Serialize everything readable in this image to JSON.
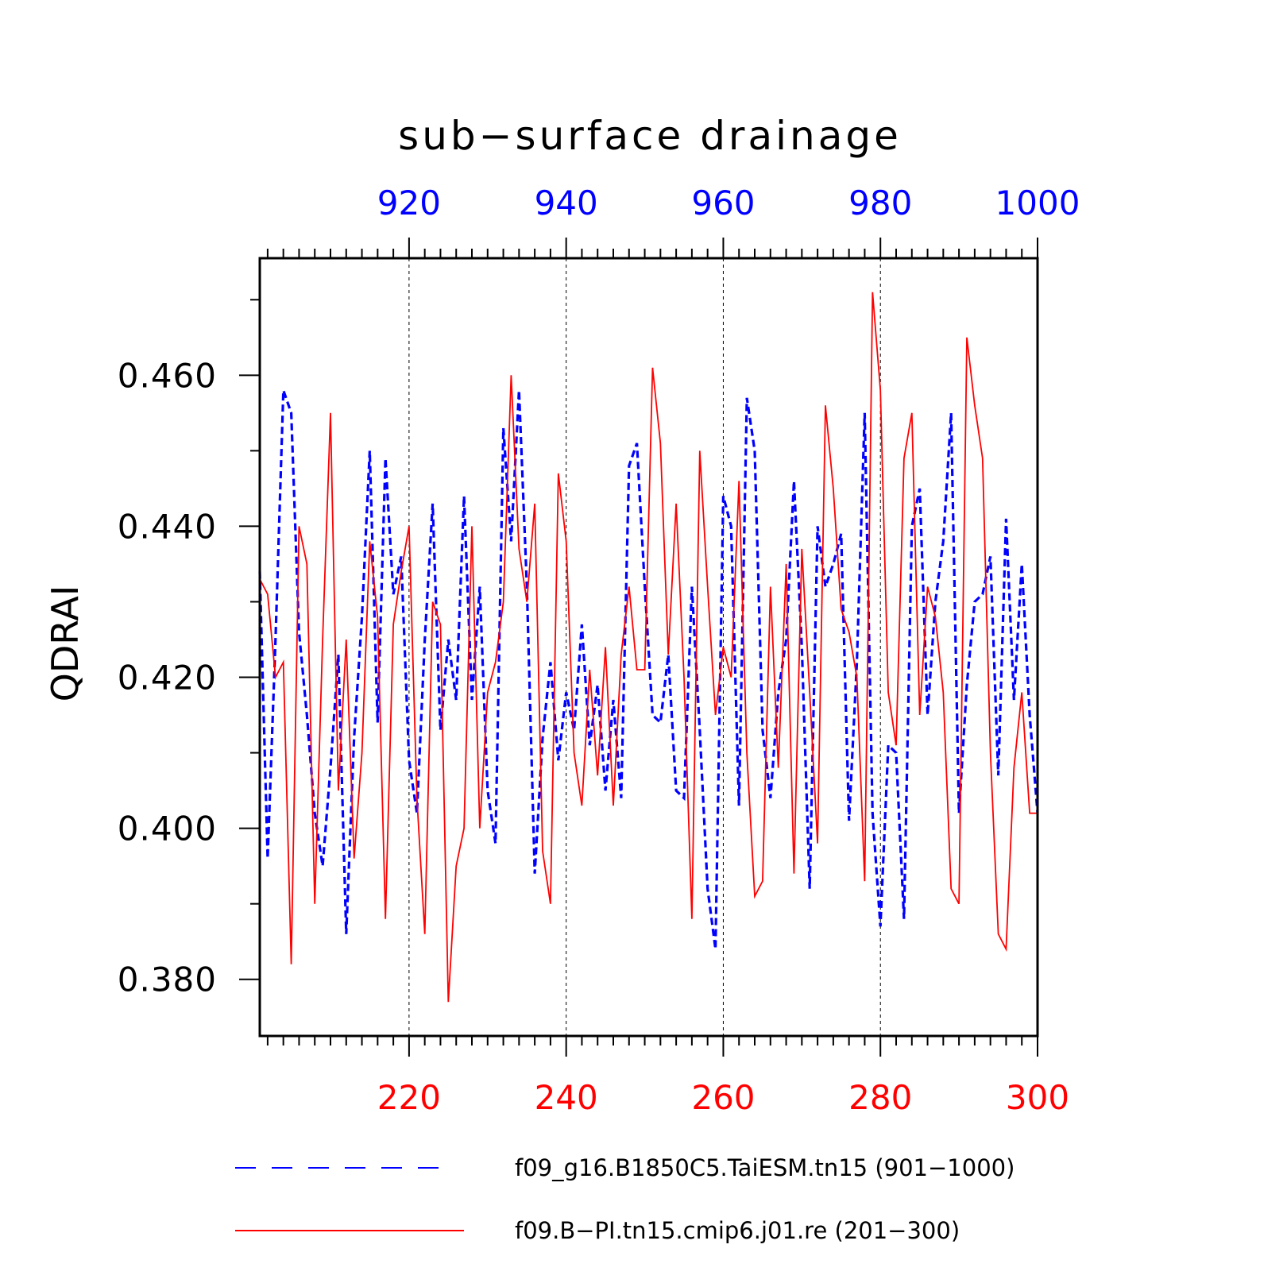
{
  "chart_data": {
    "type": "line",
    "title": "sub−surface drainage",
    "ylabel": "QDRAI",
    "ylim": [
      0.3725,
      0.4755
    ],
    "yticks": [
      0.38,
      0.4,
      0.42,
      0.44,
      0.46
    ],
    "ytick_labels": [
      "0.380",
      "0.400",
      "0.420",
      "0.440",
      "0.460"
    ],
    "grid": "vertical dashed at labeled x ticks",
    "legend_position": "bottom",
    "x_bottom": {
      "range": [
        201,
        300
      ],
      "ticks": [
        220,
        240,
        260,
        280,
        300
      ],
      "tick_labels": [
        "220",
        "240",
        "260",
        "280",
        "300"
      ],
      "color": "#ff0000"
    },
    "x_top": {
      "range": [
        901,
        1000
      ],
      "ticks": [
        920,
        940,
        960,
        980,
        1000
      ],
      "tick_labels": [
        "920",
        "940",
        "960",
        "980",
        "1000"
      ],
      "color": "#0000ff"
    },
    "series": [
      {
        "name": "f09_g16.B1850C5.TaiESM.tn15 (901−1000)",
        "color": "#0000ff",
        "dash": "dashed",
        "axis": "top",
        "x_start": 901,
        "values": [
          0.434,
          0.396,
          0.425,
          0.458,
          0.455,
          0.426,
          0.415,
          0.402,
          0.395,
          0.408,
          0.423,
          0.386,
          0.412,
          0.428,
          0.45,
          0.414,
          0.449,
          0.431,
          0.436,
          0.409,
          0.402,
          0.425,
          0.443,
          0.413,
          0.425,
          0.417,
          0.444,
          0.417,
          0.432,
          0.405,
          0.398,
          0.453,
          0.438,
          0.458,
          0.432,
          0.394,
          0.412,
          0.422,
          0.409,
          0.418,
          0.413,
          0.427,
          0.411,
          0.419,
          0.405,
          0.417,
          0.404,
          0.448,
          0.451,
          0.432,
          0.415,
          0.414,
          0.423,
          0.405,
          0.404,
          0.432,
          0.413,
          0.392,
          0.384,
          0.444,
          0.44,
          0.403,
          0.457,
          0.45,
          0.413,
          0.404,
          0.418,
          0.425,
          0.446,
          0.424,
          0.392,
          0.44,
          0.432,
          0.435,
          0.439,
          0.401,
          0.422,
          0.455,
          0.402,
          0.387,
          0.411,
          0.41,
          0.388,
          0.44,
          0.445,
          0.415,
          0.43,
          0.438,
          0.455,
          0.402,
          0.419,
          0.43,
          0.431,
          0.436,
          0.407,
          0.441,
          0.417,
          0.435,
          0.415,
          0.402
        ]
      },
      {
        "name": "f09.B−PI.tn15.cmip6.j01.re (201−300)",
        "color": "#ff0000",
        "dash": "solid",
        "axis": "bottom",
        "x_start": 201,
        "values": [
          0.433,
          0.431,
          0.42,
          0.422,
          0.382,
          0.44,
          0.435,
          0.39,
          0.425,
          0.455,
          0.405,
          0.425,
          0.396,
          0.41,
          0.438,
          0.428,
          0.388,
          0.427,
          0.434,
          0.44,
          0.404,
          0.386,
          0.43,
          0.427,
          0.377,
          0.395,
          0.4,
          0.44,
          0.4,
          0.418,
          0.422,
          0.43,
          0.46,
          0.437,
          0.43,
          0.443,
          0.397,
          0.39,
          0.447,
          0.438,
          0.41,
          0.403,
          0.421,
          0.407,
          0.424,
          0.403,
          0.423,
          0.432,
          0.421,
          0.421,
          0.461,
          0.451,
          0.423,
          0.443,
          0.42,
          0.388,
          0.45,
          0.432,
          0.415,
          0.424,
          0.42,
          0.446,
          0.41,
          0.391,
          0.393,
          0.432,
          0.408,
          0.435,
          0.394,
          0.437,
          0.418,
          0.398,
          0.456,
          0.445,
          0.429,
          0.426,
          0.42,
          0.393,
          0.471,
          0.458,
          0.418,
          0.411,
          0.449,
          0.455,
          0.415,
          0.432,
          0.428,
          0.418,
          0.392,
          0.39,
          0.465,
          0.456,
          0.449,
          0.41,
          0.386,
          0.384,
          0.408,
          0.418,
          0.402,
          0.402
        ]
      }
    ]
  }
}
